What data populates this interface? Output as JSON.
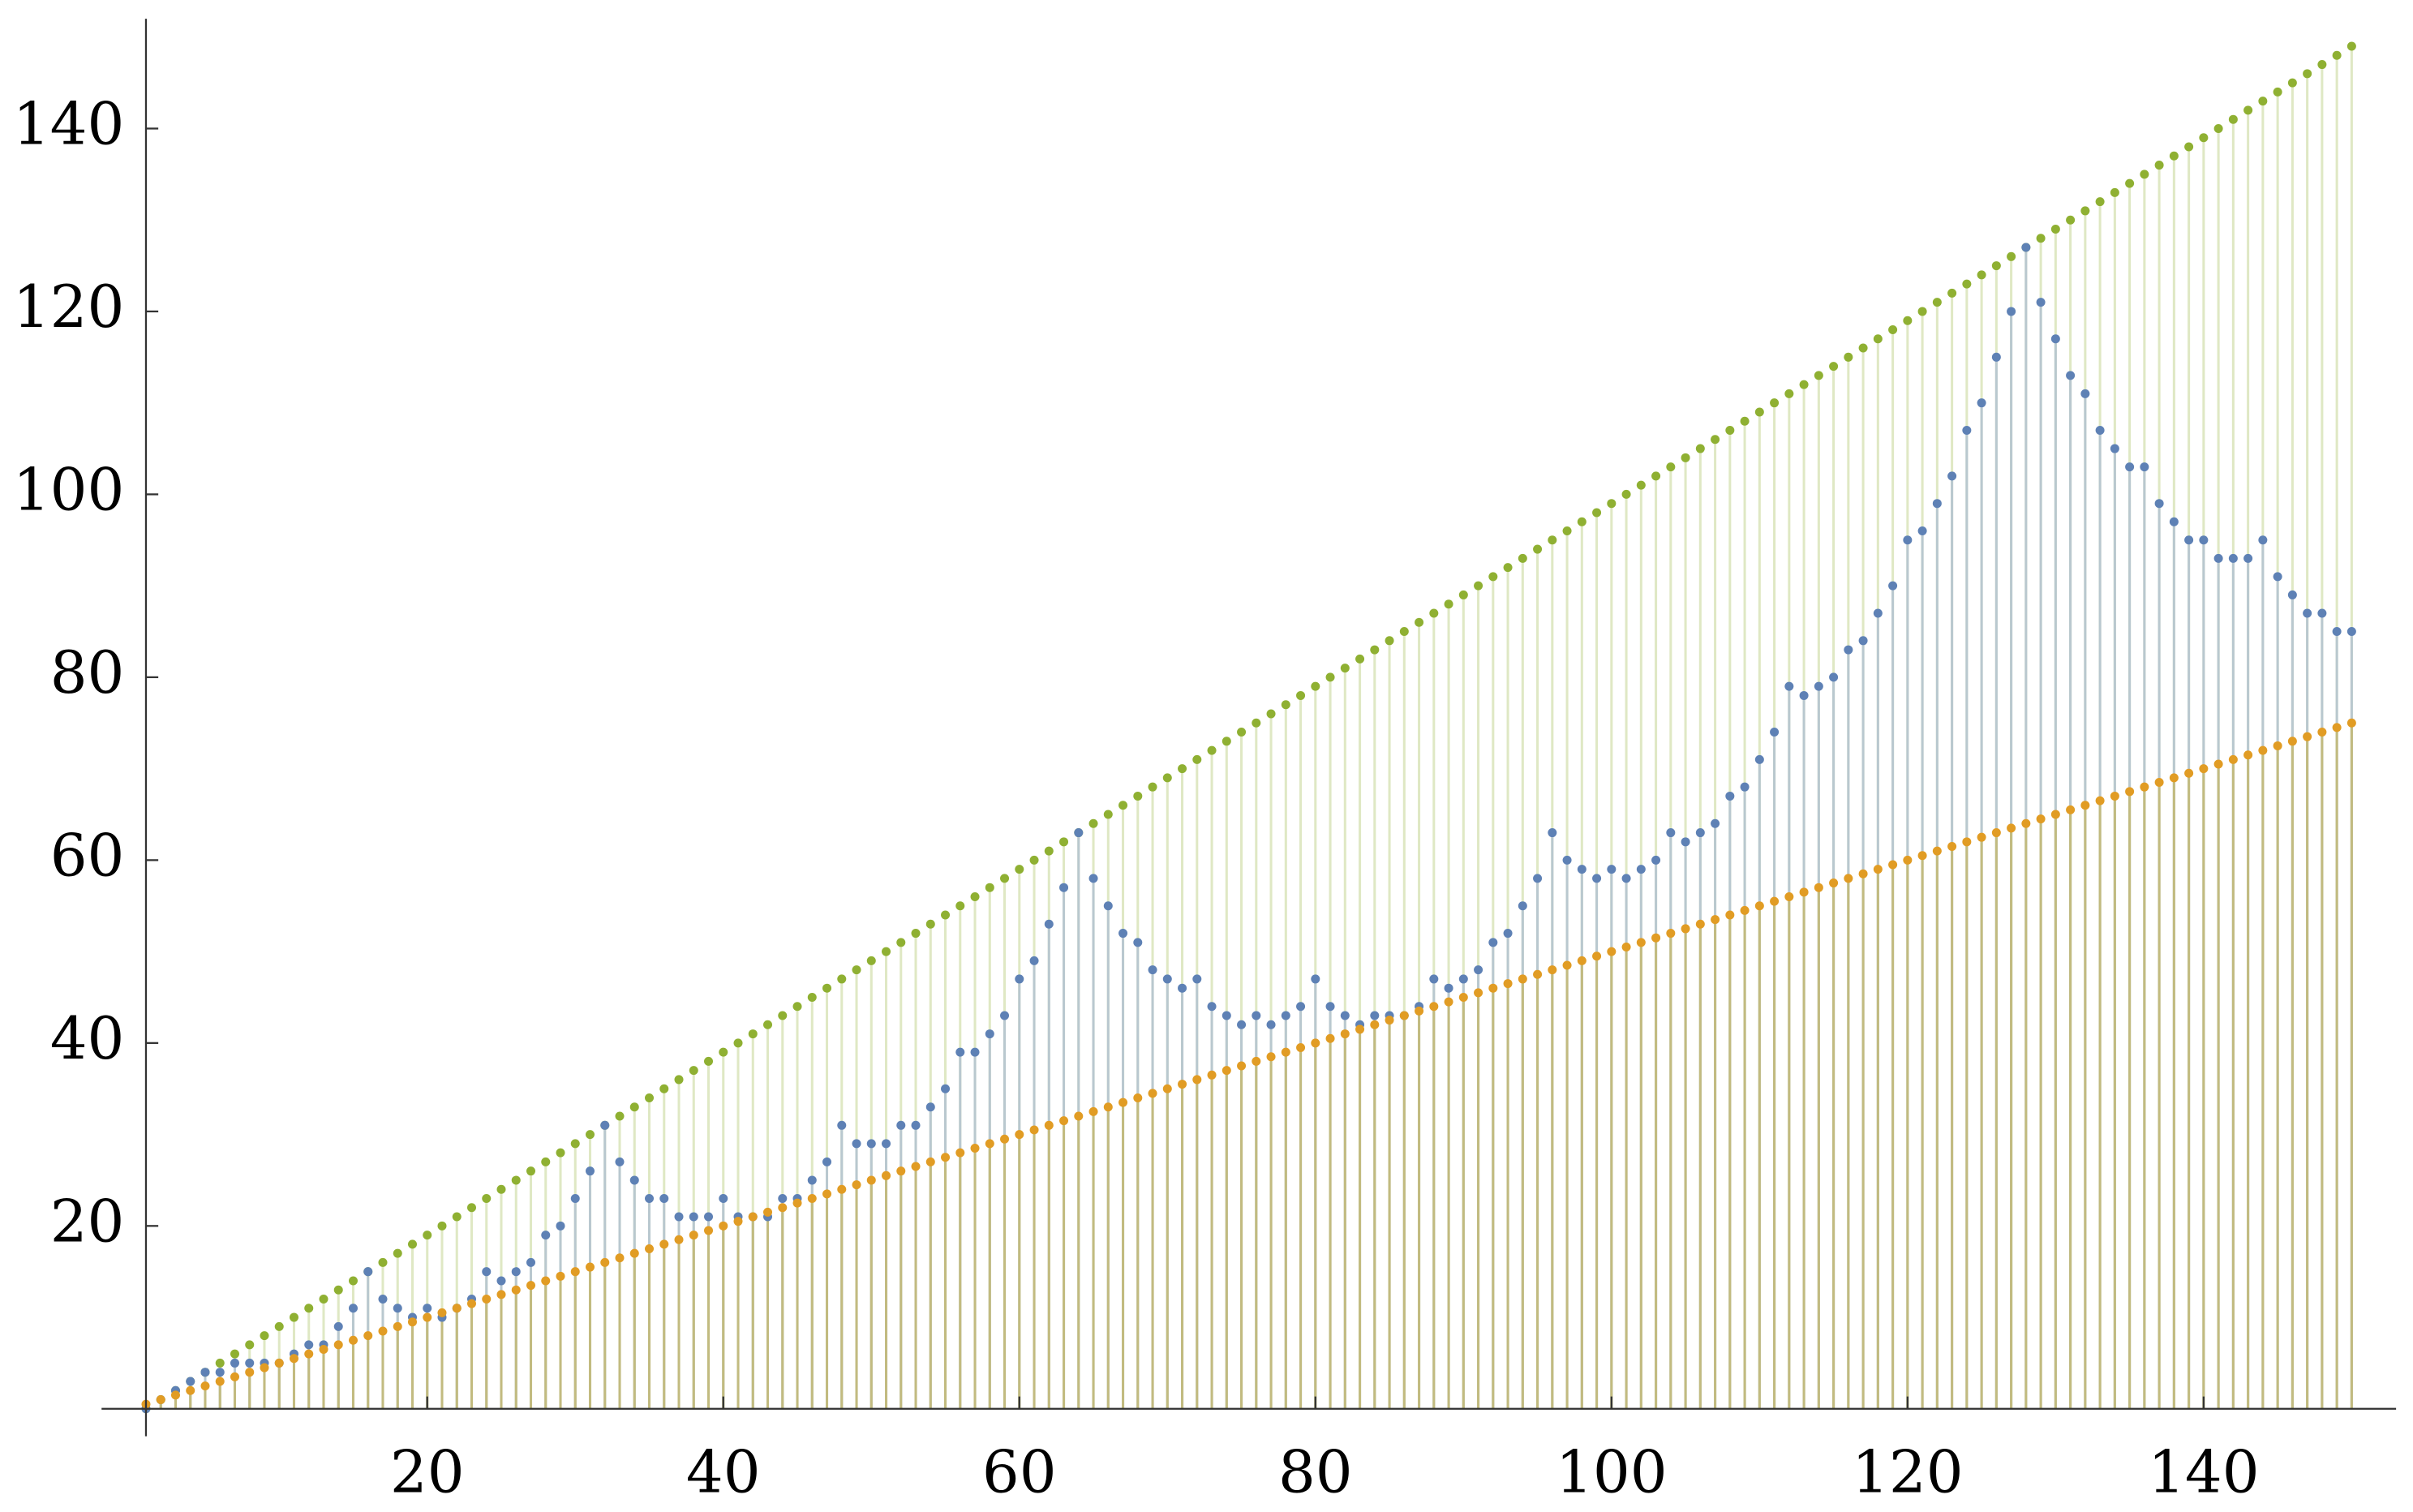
{
  "chart_data": {
    "type": "scatter",
    "x": [
      1,
      2,
      3,
      4,
      5,
      6,
      7,
      8,
      9,
      10,
      11,
      12,
      13,
      14,
      15,
      16,
      17,
      18,
      19,
      20,
      21,
      22,
      23,
      24,
      25,
      26,
      27,
      28,
      29,
      30,
      31,
      32,
      33,
      34,
      35,
      36,
      37,
      38,
      39,
      40,
      41,
      42,
      43,
      44,
      45,
      46,
      47,
      48,
      49,
      50,
      51,
      52,
      53,
      54,
      55,
      56,
      57,
      58,
      59,
      60,
      61,
      62,
      63,
      64,
      65,
      66,
      67,
      68,
      69,
      70,
      71,
      72,
      73,
      74,
      75,
      76,
      77,
      78,
      79,
      80,
      81,
      82,
      83,
      84,
      85,
      86,
      87,
      88,
      89,
      90,
      91,
      92,
      93,
      94,
      95,
      96,
      97,
      98,
      99,
      100,
      101,
      102,
      103,
      104,
      105,
      106,
      107,
      108,
      109,
      110,
      111,
      112,
      113,
      114,
      115,
      116,
      117,
      118,
      119,
      120,
      121,
      122,
      123,
      124,
      125,
      126,
      127,
      128,
      129,
      130,
      131,
      132,
      133,
      134,
      135,
      136,
      137,
      138,
      139,
      140,
      141,
      142,
      143,
      144,
      145,
      146,
      147,
      148,
      149,
      150
    ],
    "series": [
      {
        "color": "#8FB032",
        "stem_color": "#dfe8c4",
        "values": [
          0,
          1,
          2,
          3,
          4,
          5,
          6,
          7,
          8,
          9,
          10,
          11,
          12,
          13,
          14,
          15,
          16,
          17,
          18,
          19,
          20,
          21,
          22,
          23,
          24,
          25,
          26,
          27,
          28,
          29,
          30,
          31,
          32,
          33,
          34,
          35,
          36,
          37,
          38,
          39,
          40,
          41,
          42,
          43,
          44,
          45,
          46,
          47,
          48,
          49,
          50,
          51,
          52,
          53,
          54,
          55,
          56,
          57,
          58,
          59,
          60,
          61,
          62,
          63,
          64,
          65,
          66,
          67,
          68,
          69,
          70,
          71,
          72,
          73,
          74,
          75,
          76,
          77,
          78,
          79,
          80,
          81,
          82,
          83,
          84,
          85,
          86,
          87,
          88,
          89,
          90,
          91,
          92,
          93,
          94,
          95,
          96,
          97,
          98,
          99,
          100,
          101,
          102,
          103,
          104,
          105,
          106,
          107,
          108,
          109,
          110,
          111,
          112,
          113,
          114,
          115,
          116,
          117,
          118,
          119,
          120,
          121,
          122,
          123,
          124,
          125,
          126,
          127,
          128,
          129,
          130,
          131,
          132,
          133,
          134,
          135,
          136,
          137,
          138,
          139,
          140,
          141,
          142,
          143,
          144,
          145,
          146,
          147,
          148,
          149
        ]
      },
      {
        "color": "#5E81B5",
        "stem_color": "#b9c8cf",
        "values": [
          0,
          1,
          2,
          3,
          4,
          4,
          5,
          5,
          5,
          5,
          6,
          7,
          7,
          9,
          11,
          15,
          12,
          11,
          10,
          11,
          10,
          11,
          12,
          15,
          14,
          15,
          16,
          19,
          20,
          23,
          26,
          31,
          27,
          25,
          23,
          23,
          21,
          21,
          21,
          23,
          21,
          21,
          21,
          23,
          23,
          25,
          27,
          31,
          29,
          29,
          29,
          31,
          31,
          33,
          35,
          39,
          39,
          41,
          43,
          47,
          49,
          53,
          57,
          63,
          58,
          55,
          52,
          51,
          48,
          47,
          46,
          47,
          44,
          43,
          42,
          43,
          42,
          43,
          44,
          47,
          44,
          43,
          42,
          43,
          43,
          43,
          44,
          47,
          46,
          47,
          48,
          51,
          52,
          55,
          58,
          63,
          60,
          59,
          58,
          59,
          58,
          59,
          60,
          63,
          62,
          63,
          64,
          67,
          68,
          71,
          74,
          79,
          78,
          79,
          80,
          83,
          84,
          87,
          90,
          95,
          96,
          99,
          102,
          107,
          110,
          115,
          120,
          127,
          121,
          117,
          113,
          111,
          107,
          105,
          103,
          103,
          99,
          97,
          95,
          95,
          93,
          93,
          93,
          95,
          91,
          89,
          87,
          87,
          85,
          85
        ]
      },
      {
        "color": "#E19C24",
        "stem_color": "#c2bb80",
        "values": [
          0.5,
          1,
          1.5,
          2,
          2.5,
          3,
          3.5,
          4,
          4.5,
          5,
          5.5,
          6,
          6.5,
          7,
          7.5,
          8,
          8.5,
          9,
          9.5,
          10,
          10.5,
          11,
          11.5,
          12,
          12.5,
          13,
          13.5,
          14,
          14.5,
          15,
          15.5,
          16,
          16.5,
          17,
          17.5,
          18,
          18.5,
          19,
          19.5,
          20,
          20.5,
          21,
          21.5,
          22,
          22.5,
          23,
          23.5,
          24,
          24.5,
          25,
          25.5,
          26,
          26.5,
          27,
          27.5,
          28,
          28.5,
          29,
          29.5,
          30,
          30.5,
          31,
          31.5,
          32,
          32.5,
          33,
          33.5,
          34,
          34.5,
          35,
          35.5,
          36,
          36.5,
          37,
          37.5,
          38,
          38.5,
          39,
          39.5,
          40,
          40.5,
          41,
          41.5,
          42,
          42.5,
          43,
          43.5,
          44,
          44.5,
          45,
          45.5,
          46,
          46.5,
          47,
          47.5,
          48,
          48.5,
          49,
          49.5,
          50,
          50.5,
          51,
          51.5,
          52,
          52.5,
          53,
          53.5,
          54,
          54.5,
          55,
          55.5,
          56,
          56.5,
          57,
          57.5,
          58,
          58.5,
          59,
          59.5,
          60,
          60.5,
          61,
          61.5,
          62,
          62.5,
          63,
          63.5,
          64,
          64.5,
          65,
          65.5,
          66,
          66.5,
          67,
          67.5,
          68,
          68.5,
          69,
          69.5,
          70,
          70.5,
          71,
          71.5,
          72,
          72.5,
          73,
          73.5,
          74,
          74.5,
          75
        ]
      }
    ],
    "xlim": [
      -2,
      153
    ],
    "ylim": [
      -3,
      152
    ],
    "xticks": [
      20,
      40,
      60,
      80,
      100,
      120,
      140
    ],
    "yticks": [
      20,
      40,
      60,
      80,
      100,
      120,
      140
    ],
    "filling": "axis"
  }
}
